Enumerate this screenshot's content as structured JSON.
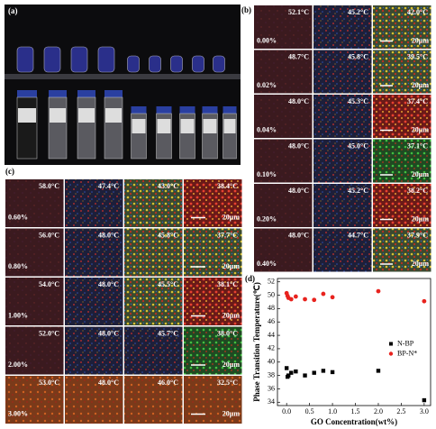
{
  "panel_a": {
    "label": "(a)"
  },
  "panel_b": {
    "label": "(b)",
    "scale_bar": "20μm",
    "rows": [
      {
        "concentration": "0.00%",
        "temps": [
          "52.1°C",
          "45.2°C",
          "42.0°C"
        ]
      },
      {
        "concentration": "0.02%",
        "temps": [
          "48.7°C",
          "45.8°C",
          "39.5°C"
        ]
      },
      {
        "concentration": "0.04%",
        "temps": [
          "48.0°C",
          "45.3°C",
          "37.4°C"
        ]
      },
      {
        "concentration": "0.10%",
        "temps": [
          "48.0°C",
          "45.0°C",
          "37.1°C"
        ]
      },
      {
        "concentration": "0.20%",
        "temps": [
          "48.0°C",
          "45.2°C",
          "38.2°C"
        ]
      },
      {
        "concentration": "0.40%",
        "temps": [
          "48.0°C",
          "44.7°C",
          "37.9°C"
        ]
      }
    ]
  },
  "panel_c": {
    "label": "(c)",
    "scale_bar": "20μm",
    "rows": [
      {
        "concentration": "0.60%",
        "temps": [
          "58.0°C",
          "47.4°C",
          "43.0°C",
          "38.4°C"
        ]
      },
      {
        "concentration": "0.80%",
        "temps": [
          "56.0°C",
          "48.0°C",
          "45.8°C",
          "37.7°C"
        ]
      },
      {
        "concentration": "1.00%",
        "temps": [
          "54.0°C",
          "48.0°C",
          "45.5°C",
          "38.1°C"
        ]
      },
      {
        "concentration": "2.00%",
        "temps": [
          "52.0°C",
          "48.0°C",
          "45.7°C",
          "38.0°C"
        ]
      },
      {
        "concentration": "3.00%",
        "temps": [
          "53.0°C",
          "48.0°C",
          "46.0°C",
          "32.5°C"
        ]
      }
    ]
  },
  "chart_data": {
    "type": "scatter",
    "label": "(d)",
    "x_label": "GO Concentration(wt%)",
    "y_label": "Phase Transition Temperature(℃)",
    "x": [
      0,
      0.02,
      0.04,
      0.1,
      0.2,
      0.4,
      0.6,
      0.8,
      1,
      2,
      3
    ],
    "series": [
      {
        "name": "N-BP",
        "color": "#000000",
        "marker": "square",
        "values": [
          39.1,
          37.8,
          38.0,
          38.4,
          38.6,
          38.0,
          38.4,
          38.7,
          38.5,
          38.7,
          34.3
        ]
      },
      {
        "name": "BP-N*",
        "color": "#e8231e",
        "marker": "circle",
        "values": [
          50.3,
          49.9,
          49.6,
          49.4,
          49.8,
          49.4,
          49.3,
          50.2,
          49.7,
          50.6,
          49.1
        ]
      }
    ],
    "xlim": [
      -0.2,
      3.14
    ],
    "ylim": [
      33.5,
      52.5
    ],
    "xticks": [
      {
        "value": 0,
        "label": "0.0"
      },
      0.5,
      {
        "value": 1,
        "label": "1.0"
      },
      1.5,
      {
        "value": 2,
        "label": "2.0"
      },
      2.5,
      {
        "value": 3,
        "label": "3.0"
      }
    ],
    "yticks": [
      34,
      36,
      38,
      40,
      42,
      44,
      46,
      48,
      50,
      52
    ],
    "legend": "right"
  }
}
